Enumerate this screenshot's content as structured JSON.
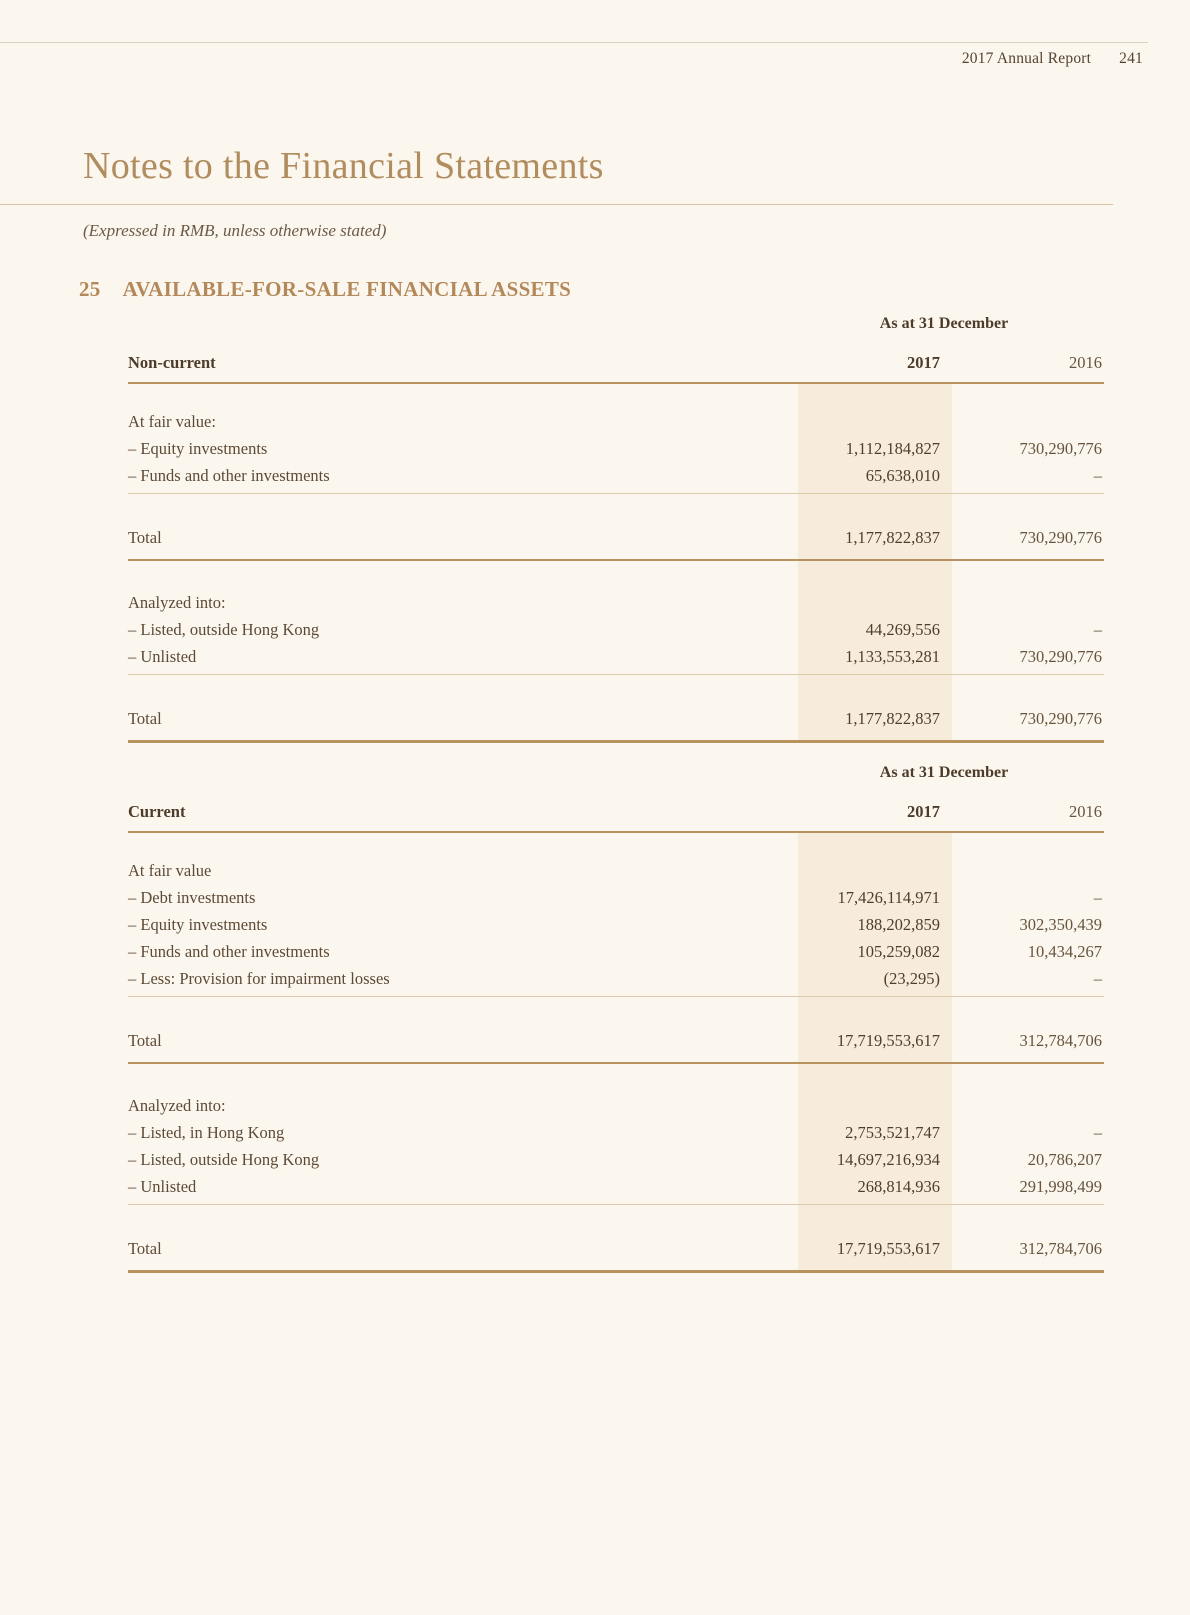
{
  "page_header": {
    "report_title": "2017 Annual Report",
    "page_number": "241"
  },
  "doc": {
    "title": "Notes to the Financial Statements",
    "subtitle": "(Expressed in RMB, unless otherwise stated)"
  },
  "section": {
    "number": "25",
    "title": "AVAILABLE-FOR-SALE FINANCIAL ASSETS"
  },
  "colors": {
    "page_background": "#fbf7ee",
    "column_highlight_2017": "#f7ecdc",
    "accent_gold_rule": "#b8925f",
    "thin_rule": "#dccbab",
    "heading_tan": "#b3885a",
    "title_tan": "#b18c5f",
    "text_brown": "#5d4a37"
  },
  "tables": [
    {
      "period_header": "As at 31 December",
      "row_header": "Non-current",
      "col_2017": "2017",
      "col_2016": "2016",
      "rows1": [
        {
          "label": "At fair value:",
          "v2017": "",
          "v2016": ""
        },
        {
          "label": "– Equity investments",
          "v2017": "1,112,184,827",
          "v2016": "730,290,776"
        },
        {
          "label": "– Funds and other investments",
          "v2017": "65,638,010",
          "v2016": "–"
        }
      ],
      "total1": {
        "label": "Total",
        "v2017": "1,177,822,837",
        "v2016": "730,290,776"
      },
      "rows2": [
        {
          "label": "Analyzed into:",
          "v2017": "",
          "v2016": ""
        },
        {
          "label": "– Listed, outside Hong Kong",
          "v2017": "44,269,556",
          "v2016": "–"
        },
        {
          "label": "– Unlisted",
          "v2017": "1,133,553,281",
          "v2016": "730,290,776"
        }
      ],
      "total2": {
        "label": "Total",
        "v2017": "1,177,822,837",
        "v2016": "730,290,776"
      }
    },
    {
      "period_header": "As at 31 December",
      "row_header": "Current",
      "col_2017": "2017",
      "col_2016": "2016",
      "rows1": [
        {
          "label": "At fair value",
          "v2017": "",
          "v2016": ""
        },
        {
          "label": "– Debt investments",
          "v2017": "17,426,114,971",
          "v2016": "–"
        },
        {
          "label": "– Equity investments",
          "v2017": "188,202,859",
          "v2016": "302,350,439"
        },
        {
          "label": "– Funds and other investments",
          "v2017": "105,259,082",
          "v2016": "10,434,267"
        },
        {
          "label": "– Less: Provision for impairment losses",
          "v2017": "(23,295)",
          "v2016": "–"
        }
      ],
      "total1": {
        "label": "Total",
        "v2017": "17,719,553,617",
        "v2016": "312,784,706"
      },
      "rows2": [
        {
          "label": "Analyzed into:",
          "v2017": "",
          "v2016": ""
        },
        {
          "label": "– Listed, in Hong Kong",
          "v2017": "2,753,521,747",
          "v2016": "–"
        },
        {
          "label": "– Listed, outside Hong Kong",
          "v2017": "14,697,216,934",
          "v2016": "20,786,207"
        },
        {
          "label": "– Unlisted",
          "v2017": "268,814,936",
          "v2016": "291,998,499"
        }
      ],
      "total2": {
        "label": "Total",
        "v2017": "17,719,553,617",
        "v2016": "312,784,706"
      }
    }
  ]
}
